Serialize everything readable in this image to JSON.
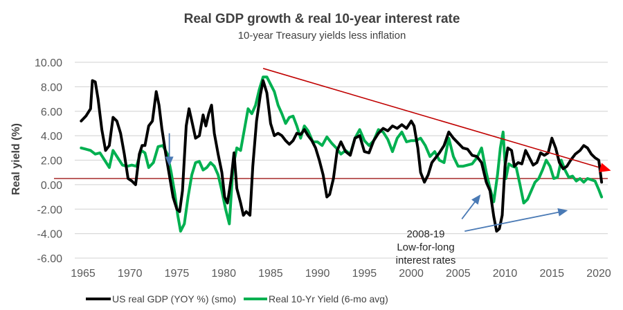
{
  "chart_data": {
    "type": "line",
    "title": "Real GDP growth & real 10-year interest rate",
    "subtitle": "10-year Treasury yields less inflation",
    "xlabel": "",
    "ylabel": "Real yield (%)",
    "xlim": [
      1964.0,
      2021.0
    ],
    "ylim": [
      -6,
      10
    ],
    "grid": true,
    "legend_position": "bottom",
    "x_ticks": [
      "1965",
      "1970",
      "1975",
      "1980",
      "1985",
      "1990",
      "1995",
      "2000",
      "2005",
      "2010",
      "2015",
      "2020"
    ],
    "y_ticks": [
      "10.00",
      "8.00",
      "6.00",
      "4.00",
      "2.00",
      "0.00",
      "-2.00",
      "-4.00",
      "-6.00"
    ],
    "series": [
      {
        "name": "US real GDP (YOY %) (smo)",
        "color": "#000000",
        "x": [
          1964.8,
          1965.3,
          1965.8,
          1966.0,
          1966.3,
          1966.6,
          1967.0,
          1967.4,
          1967.8,
          1968.2,
          1968.6,
          1969.0,
          1969.4,
          1969.8,
          1970.2,
          1970.6,
          1971.0,
          1971.3,
          1971.6,
          1972.0,
          1972.4,
          1972.8,
          1973.1,
          1973.4,
          1973.8,
          1974.2,
          1974.6,
          1975.0,
          1975.3,
          1975.6,
          1976.0,
          1976.3,
          1976.6,
          1977.0,
          1977.4,
          1977.8,
          1978.1,
          1978.4,
          1978.7,
          1979.0,
          1979.4,
          1979.8,
          1980.1,
          1980.4,
          1980.8,
          1981.1,
          1981.4,
          1981.8,
          1982.1,
          1982.4,
          1982.8,
          1983.1,
          1983.5,
          1983.9,
          1984.2,
          1984.6,
          1985.0,
          1985.4,
          1985.8,
          1986.2,
          1986.6,
          1987.0,
          1987.4,
          1987.8,
          1988.2,
          1988.6,
          1989.0,
          1989.4,
          1989.8,
          1990.2,
          1990.6,
          1991.0,
          1991.3,
          1991.7,
          1992.1,
          1992.5,
          1993.0,
          1993.5,
          1994.0,
          1994.5,
          1995.0,
          1995.5,
          1996.0,
          1996.5,
          1997.0,
          1997.5,
          1998.0,
          1998.5,
          1999.0,
          1999.5,
          2000.0,
          2000.3,
          2000.7,
          2001.0,
          2001.4,
          2001.8,
          2002.2,
          2002.6,
          2003.0,
          2003.5,
          2004.0,
          2004.5,
          2005.0,
          2005.5,
          2006.0,
          2006.5,
          2007.0,
          2007.5,
          2008.0,
          2008.4,
          2008.8,
          2009.1,
          2009.4,
          2009.7,
          2010.0,
          2010.3,
          2010.7,
          2011.0,
          2011.4,
          2011.8,
          2012.2,
          2012.6,
          2013.0,
          2013.4,
          2013.8,
          2014.2,
          2014.6,
          2015.0,
          2015.4,
          2015.8,
          2016.2,
          2016.6,
          2017.0,
          2017.5,
          2018.0,
          2018.4,
          2018.8,
          2019.2,
          2019.6,
          2020.0,
          2020.3
        ],
        "y": [
          5.2,
          5.6,
          6.2,
          8.5,
          8.4,
          7.0,
          4.5,
          2.8,
          3.2,
          5.5,
          5.2,
          4.2,
          2.5,
          0.5,
          0.3,
          0.0,
          2.5,
          3.2,
          3.2,
          4.8,
          5.2,
          7.6,
          6.5,
          4.6,
          2.6,
          0.8,
          -1.0,
          -2.0,
          -2.2,
          -0.5,
          4.8,
          6.2,
          5.2,
          3.8,
          4.0,
          5.7,
          4.8,
          5.8,
          6.5,
          4.2,
          2.5,
          1.0,
          -1.0,
          -1.5,
          0.5,
          2.6,
          -0.3,
          -1.5,
          -2.5,
          -2.2,
          -2.5,
          1.5,
          5.2,
          7.3,
          8.5,
          7.5,
          5.0,
          4.0,
          4.2,
          4.0,
          3.6,
          3.3,
          3.6,
          4.2,
          4.1,
          4.5,
          4.0,
          3.6,
          3.0,
          2.0,
          0.8,
          -1.0,
          -0.8,
          0.5,
          2.8,
          3.5,
          2.7,
          2.4,
          3.8,
          4.0,
          2.7,
          2.6,
          3.6,
          4.2,
          4.6,
          4.4,
          4.8,
          4.6,
          4.9,
          4.6,
          5.2,
          4.8,
          3.0,
          1.0,
          0.2,
          0.8,
          1.8,
          2.2,
          2.6,
          3.2,
          4.3,
          3.8,
          3.4,
          3.0,
          2.9,
          2.4,
          2.3,
          1.8,
          0.2,
          -0.5,
          -2.6,
          -3.8,
          -3.6,
          -2.5,
          1.5,
          3.0,
          2.8,
          1.5,
          1.8,
          1.7,
          2.8,
          2.2,
          1.6,
          1.8,
          2.6,
          2.4,
          2.6,
          3.8,
          3.0,
          1.8,
          1.3,
          1.5,
          2.0,
          2.5,
          2.8,
          3.2,
          3.0,
          2.5,
          2.2,
          2.0,
          0.2
        ]
      },
      {
        "name": "Real 10-Yr Yield (6-mo avg)",
        "color": "#00b050",
        "x": [
          1964.8,
          1965.3,
          1965.8,
          1966.3,
          1966.8,
          1967.3,
          1967.8,
          1968.2,
          1968.7,
          1969.2,
          1969.7,
          1970.2,
          1970.7,
          1971.2,
          1971.6,
          1972.0,
          1972.5,
          1973.0,
          1973.5,
          1974.0,
          1974.4,
          1974.8,
          1975.1,
          1975.4,
          1975.8,
          1976.2,
          1976.6,
          1977.0,
          1977.4,
          1977.8,
          1978.2,
          1978.6,
          1979.0,
          1979.4,
          1979.8,
          1980.2,
          1980.6,
          1981.0,
          1981.4,
          1981.8,
          1982.2,
          1982.6,
          1983.0,
          1983.4,
          1983.8,
          1984.2,
          1984.6,
          1985.0,
          1985.4,
          1985.8,
          1986.2,
          1986.6,
          1987.0,
          1987.4,
          1987.8,
          1988.2,
          1988.6,
          1989.0,
          1989.5,
          1990.0,
          1990.5,
          1991.0,
          1991.5,
          1992.0,
          1992.5,
          1993.0,
          1993.5,
          1994.0,
          1994.5,
          1995.0,
          1995.5,
          1996.0,
          1996.5,
          1997.0,
          1997.5,
          1998.0,
          1998.5,
          1999.0,
          1999.5,
          2000.0,
          2000.5,
          2001.0,
          2001.5,
          2002.0,
          2002.5,
          2003.0,
          2003.5,
          2004.0,
          2004.5,
          2005.0,
          2005.5,
          2006.0,
          2006.5,
          2007.0,
          2007.5,
          2008.0,
          2008.4,
          2008.8,
          2009.2,
          2009.5,
          2009.8,
          2010.1,
          2010.4,
          2010.8,
          2011.2,
          2011.6,
          2012.0,
          2012.4,
          2012.8,
          2013.2,
          2013.6,
          2014.0,
          2014.4,
          2014.8,
          2015.2,
          2015.6,
          2016.0,
          2016.4,
          2016.8,
          2017.2,
          2017.6,
          2018.0,
          2018.4,
          2018.8,
          2019.2,
          2019.6,
          2020.0,
          2020.3
        ],
        "y": [
          3.0,
          2.9,
          2.8,
          2.5,
          2.6,
          2.0,
          1.4,
          2.8,
          2.2,
          1.6,
          1.5,
          1.6,
          1.5,
          2.8,
          2.6,
          1.4,
          1.8,
          3.1,
          3.2,
          2.5,
          1.0,
          -0.8,
          -2.5,
          -3.8,
          -3.2,
          -1.0,
          0.8,
          1.8,
          1.9,
          1.2,
          1.4,
          1.8,
          1.5,
          0.8,
          -0.5,
          -2.0,
          -3.2,
          1.5,
          3.0,
          2.8,
          4.5,
          6.2,
          5.8,
          6.5,
          7.8,
          8.8,
          8.8,
          8.2,
          7.6,
          6.5,
          5.8,
          5.0,
          5.5,
          5.6,
          4.8,
          3.8,
          4.8,
          4.4,
          3.5,
          3.5,
          3.2,
          3.9,
          3.4,
          3.0,
          2.5,
          2.8,
          2.5,
          3.8,
          4.5,
          3.6,
          3.2,
          3.6,
          4.5,
          4.3,
          3.7,
          2.7,
          3.8,
          4.3,
          3.5,
          3.6,
          3.6,
          3.8,
          3.2,
          2.3,
          2.7,
          2.0,
          1.8,
          3.8,
          2.3,
          1.5,
          1.5,
          1.6,
          1.7,
          2.2,
          3.0,
          1.0,
          -0.3,
          -1.4,
          0.8,
          3.0,
          4.3,
          0.5,
          1.7,
          1.5,
          1.4,
          0.0,
          -1.5,
          -1.2,
          -0.5,
          0.2,
          0.5,
          1.2,
          2.0,
          1.5,
          0.5,
          0.6,
          2.0,
          1.2,
          0.6,
          0.7,
          0.3,
          0.5,
          0.2,
          0.5,
          0.4,
          0.3,
          -0.4,
          -1.0
        ]
      }
    ],
    "annotations": {
      "text_lines": [
        "2008-19",
        "Low-for-long",
        "interest rates"
      ],
      "trend_line": {
        "from": [
          1984.2,
          9.5
        ],
        "to": [
          2021.0,
          1.2
        ],
        "color": "#c00000",
        "arrow": true
      },
      "zero_line": {
        "y": 0.5,
        "color": "#a52a2a"
      },
      "arrows": [
        {
          "color": "#4a7ab5",
          "from": [
            1974.2,
            4.2
          ],
          "to": [
            1974.2,
            1.5
          ]
        },
        {
          "color": "#4a7ab5",
          "from": [
            2005.4,
            -2.8
          ],
          "to": [
            2007.4,
            -0.8
          ]
        },
        {
          "color": "#4a7ab5",
          "from": [
            2005.7,
            -3.8
          ],
          "to": [
            2016.7,
            -2.1
          ]
        }
      ]
    }
  }
}
